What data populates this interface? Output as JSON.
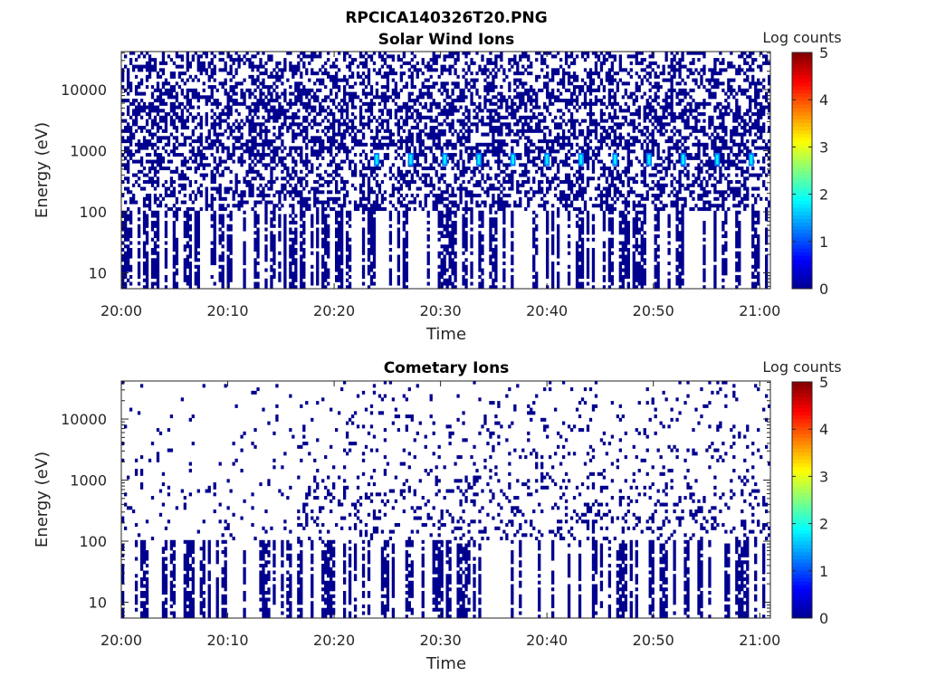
{
  "figure_title": "RPCICA140326T20.PNG",
  "colormap": [
    "#00008f",
    "#0000ff",
    "#0080ff",
    "#00ffff",
    "#80ff80",
    "#ffff00",
    "#ff8000",
    "#ff0000",
    "#800000"
  ],
  "chart_data": [
    {
      "type": "heatmap",
      "title": "Solar Wind Ions",
      "xlabel": "Time",
      "ylabel": "Energy (eV)",
      "x_ticks": [
        "20:00",
        "20:10",
        "20:20",
        "20:30",
        "20:40",
        "20:50",
        "21:00"
      ],
      "x_tick_minutes": [
        0,
        10,
        20,
        30,
        40,
        50,
        60
      ],
      "xlim_minutes": [
        0,
        61
      ],
      "yscale": "log",
      "ylim": [
        5.5,
        42000
      ],
      "y_ticks": [
        "10",
        "100",
        "1000",
        "10000"
      ],
      "y_tick_values": [
        10,
        100,
        1000,
        10000
      ],
      "colorbar": {
        "label": "Log counts",
        "min": 0,
        "max": 5,
        "ticks": [
          "0",
          "1",
          "2",
          "3",
          "4",
          "5"
        ]
      },
      "background": "white (no counts)",
      "sparse_fill": {
        "description": "scattered single-count pixels (log counts ~0), denser at high energy",
        "seed": 11,
        "density_by_energy_decade": [
          0.55,
          0.45,
          0.5,
          0.42
        ],
        "band_columns_low_energy": true
      },
      "bursts": {
        "description": "periodic enhancements near 600-900 eV, log counts ~1.5-2",
        "time_minutes": [
          24,
          27.2,
          30.4,
          33.6,
          36.8,
          40,
          43.2,
          46.4,
          49.6,
          52.8,
          56,
          59.2
        ],
        "energy_range": [
          560,
          920
        ],
        "log_counts": 1.8
      }
    },
    {
      "type": "heatmap",
      "title": "Cometary Ions",
      "xlabel": "Time",
      "ylabel": "Energy (eV)",
      "x_ticks": [
        "20:00",
        "20:10",
        "20:20",
        "20:30",
        "20:40",
        "20:50",
        "21:00"
      ],
      "x_tick_minutes": [
        0,
        10,
        20,
        30,
        40,
        50,
        60
      ],
      "xlim_minutes": [
        0,
        61
      ],
      "yscale": "log",
      "ylim": [
        5.5,
        42000
      ],
      "y_ticks": [
        "10",
        "100",
        "1000",
        "10000"
      ],
      "y_tick_values": [
        10,
        100,
        1000,
        10000
      ],
      "colorbar": {
        "label": "Log counts",
        "min": 0,
        "max": 5,
        "ticks": [
          "0",
          "1",
          "2",
          "3",
          "4",
          "5"
        ]
      },
      "background": "white (no counts)",
      "sparse_fill": {
        "description": "scattered single-count pixels (log counts ~0), sparser early, denser after 20:16",
        "seed": 29,
        "density_by_energy_decade": [
          0.32,
          0.18,
          0.1,
          0.05
        ],
        "band_columns_low_energy": true
      },
      "bursts": null
    }
  ]
}
